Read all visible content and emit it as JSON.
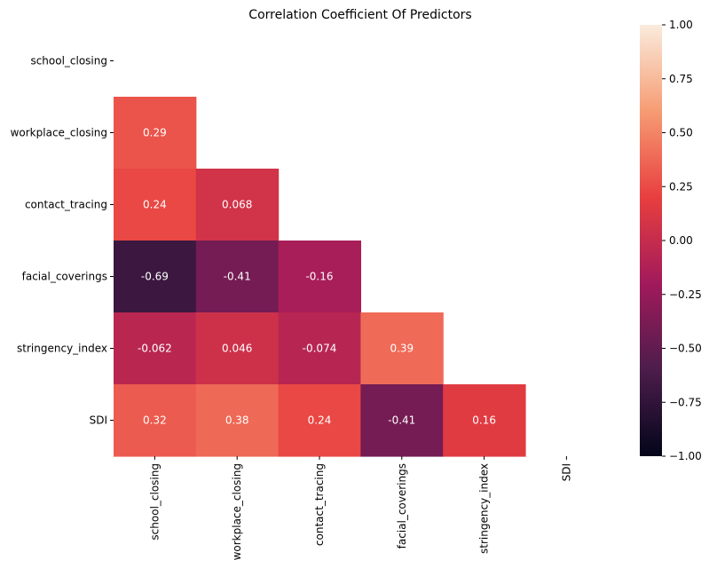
{
  "chart_data": {
    "type": "heatmap",
    "title": "Correlation Coefficient Of Predictors",
    "variables": [
      "school_closing",
      "workplace_closing",
      "contact_tracing",
      "facial_coverings",
      "stringency_index",
      "SDI"
    ],
    "mask": "upper-triangle-including-diagonal",
    "values": [
      [
        null,
        null,
        null,
        null,
        null,
        null
      ],
      [
        0.29,
        null,
        null,
        null,
        null,
        null
      ],
      [
        0.24,
        0.068,
        null,
        null,
        null,
        null
      ],
      [
        -0.69,
        -0.41,
        -0.16,
        null,
        null,
        null
      ],
      [
        -0.062,
        0.046,
        -0.074,
        0.39,
        null,
        null
      ],
      [
        0.32,
        0.38,
        0.24,
        -0.41,
        0.16,
        null
      ]
    ],
    "labels": [
      [
        null,
        null,
        null,
        null,
        null,
        null
      ],
      [
        "0.29",
        null,
        null,
        null,
        null,
        null
      ],
      [
        "0.24",
        "0.068",
        null,
        null,
        null,
        null
      ],
      [
        "-0.69",
        "-0.41",
        "-0.16",
        null,
        null,
        null
      ],
      [
        "-0.062",
        "0.046",
        "-0.074",
        "0.39",
        null,
        null
      ],
      [
        "0.32",
        "0.38",
        "0.24",
        "-0.41",
        "0.16",
        null
      ]
    ],
    "colorbar": {
      "range": [
        -1.0,
        1.0
      ],
      "ticks": [
        1.0,
        0.75,
        0.5,
        0.25,
        0.0,
        -0.25,
        -0.5,
        -0.75,
        -1.0
      ],
      "tick_labels": [
        "1.00",
        "0.75",
        "0.50",
        "0.25",
        "0.00",
        "−0.25",
        "−0.50",
        "−0.75",
        "−1.00"
      ],
      "colormap": "rocket"
    },
    "colormap_stops": [
      "#03051a",
      "#4c1d4b",
      "#a11a5b",
      "#e83f3f",
      "#f69c73",
      "#faebdd"
    ]
  }
}
